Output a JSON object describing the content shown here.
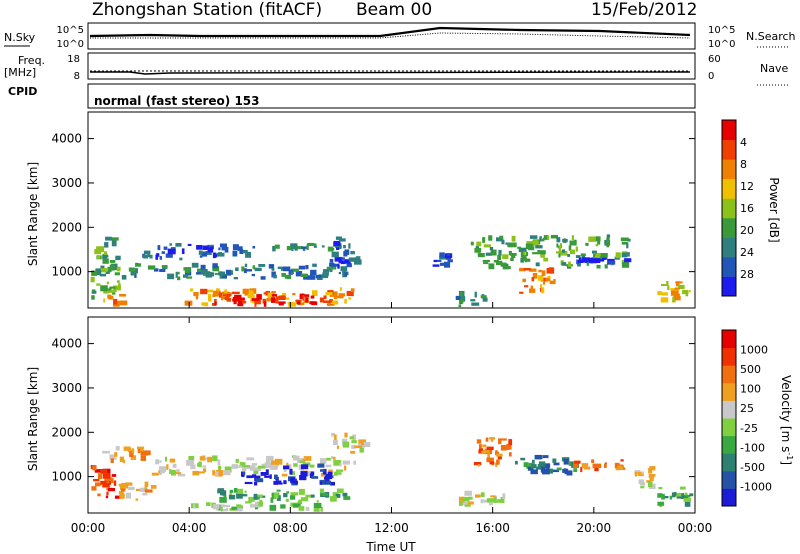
{
  "header": {
    "station": "Zhongshan Station (fitACF)",
    "beam": "Beam 00",
    "date": "15/Feb/2012"
  },
  "summary_panels": {
    "nsky_label": "N.Sky",
    "nsearch_label": "N.Search",
    "count_ticks": [
      "10^5",
      "10^0"
    ],
    "freq_label": "Freq.",
    "freq_unit": "[MHz]",
    "freq_ticks": [
      "18",
      "8"
    ],
    "nave_label": "Nave",
    "nave_ticks": [
      "60",
      "0"
    ],
    "cpid_label": "CPID",
    "cpid_value": "normal (fast stereo) 153"
  },
  "chart_data": [
    {
      "type": "heatmap",
      "name": "power",
      "ylabel": "Slant Range [km]",
      "ylim": [
        180,
        4600
      ],
      "xlim": [
        0,
        24
      ],
      "yticks": [
        "1000",
        "2000",
        "3000",
        "4000"
      ],
      "colorbar": {
        "label": "Power [dB]",
        "ticks": [
          "4",
          "8",
          "12",
          "16",
          "20",
          "24",
          "28"
        ],
        "colors": [
          "#1c1cf0",
          "#2255b8",
          "#2f7f7f",
          "#3a9a3a",
          "#8cc11a",
          "#f0c000",
          "#f08000",
          "#f04000",
          "#e60000"
        ]
      },
      "blobs": [
        {
          "t0": 0.1,
          "t1": 1.3,
          "r0": 300,
          "r1": 1800,
          "level": 3
        },
        {
          "t0": 0.6,
          "t1": 1.6,
          "r0": 200,
          "r1": 500,
          "level": 6
        },
        {
          "t0": 1.2,
          "t1": 10.6,
          "r0": 800,
          "r1": 1200,
          "level": 2
        },
        {
          "t0": 2.0,
          "t1": 6.5,
          "r0": 1250,
          "r1": 1650,
          "level": 1
        },
        {
          "t0": 3.8,
          "t1": 10.6,
          "r0": 200,
          "r1": 650,
          "level": 6
        },
        {
          "t0": 5.0,
          "t1": 9.5,
          "r0": 200,
          "r1": 500,
          "level": 8
        },
        {
          "t0": 6.5,
          "t1": 10.5,
          "r0": 1450,
          "r1": 1650,
          "level": 2
        },
        {
          "t0": 9.5,
          "t1": 11.0,
          "r0": 1050,
          "r1": 1800,
          "level": 1
        },
        {
          "t0": 13.5,
          "t1": 14.5,
          "r0": 1000,
          "r1": 1450,
          "level": 1
        },
        {
          "t0": 14.5,
          "t1": 15.8,
          "r0": 200,
          "r1": 600,
          "level": 2
        },
        {
          "t0": 15.0,
          "t1": 21.5,
          "r0": 1050,
          "r1": 1850,
          "level": 3
        },
        {
          "t0": 17.0,
          "t1": 18.5,
          "r0": 500,
          "r1": 1200,
          "level": 6
        },
        {
          "t0": 19.2,
          "t1": 21.6,
          "r0": 1150,
          "r1": 1350,
          "level": 0
        },
        {
          "t0": 22.5,
          "t1": 24.0,
          "r0": 300,
          "r1": 800,
          "level": 5
        }
      ]
    },
    {
      "type": "heatmap",
      "name": "velocity",
      "ylabel": "Slant Range [km]",
      "ylim": [
        180,
        4600
      ],
      "xlim": [
        0,
        24
      ],
      "yticks": [
        "1000",
        "2000",
        "3000",
        "4000"
      ],
      "colorbar": {
        "label": "Velocity [m s",
        "label_sup": "-1",
        "label_end": "]",
        "ticks": [
          "1000",
          "500",
          "100",
          "25",
          "-25",
          "-100",
          "-500",
          "-1000"
        ],
        "colors": [
          "#1c1cd8",
          "#2452a8",
          "#2e8070",
          "#3aa840",
          "#7fd040",
          "#c8c8c8",
          "#f0a020",
          "#f07010",
          "#f03000",
          "#e60000"
        ]
      },
      "blobs": [
        {
          "t0": 0.1,
          "t1": 1.3,
          "r0": 500,
          "r1": 1300,
          "level": 8
        },
        {
          "t0": 0.5,
          "t1": 2.5,
          "r0": 1300,
          "r1": 1700,
          "level": 6
        },
        {
          "t0": 1.2,
          "t1": 2.8,
          "r0": 450,
          "r1": 900,
          "level": 6
        },
        {
          "t0": 2.5,
          "t1": 10.6,
          "r0": 1000,
          "r1": 1500,
          "level": 5
        },
        {
          "t0": 6.0,
          "t1": 9.8,
          "r0": 800,
          "r1": 1300,
          "level": 0
        },
        {
          "t0": 5.0,
          "t1": 10.6,
          "r0": 400,
          "r1": 750,
          "level": 3
        },
        {
          "t0": 4.0,
          "t1": 9.5,
          "r0": 200,
          "r1": 450,
          "level": 4
        },
        {
          "t0": 9.5,
          "t1": 11.2,
          "r0": 1500,
          "r1": 2000,
          "level": 5
        },
        {
          "t0": 14.5,
          "t1": 16.5,
          "r0": 300,
          "r1": 700,
          "level": 5
        },
        {
          "t0": 15.0,
          "t1": 16.8,
          "r0": 1200,
          "r1": 1900,
          "level": 7
        },
        {
          "t0": 16.8,
          "t1": 19.5,
          "r0": 1000,
          "r1": 1500,
          "level": 2
        },
        {
          "t0": 19.0,
          "t1": 21.5,
          "r0": 1100,
          "r1": 1400,
          "level": 7
        },
        {
          "t0": 21.5,
          "t1": 22.5,
          "r0": 700,
          "r1": 1300,
          "level": 5
        },
        {
          "t0": 22.5,
          "t1": 24.0,
          "r0": 300,
          "r1": 800,
          "level": 3
        }
      ]
    }
  ],
  "x_axis": {
    "title": "Time UT",
    "ticks": [
      "00:00",
      "04:00",
      "08:00",
      "12:00",
      "16:00",
      "20:00",
      "00:00"
    ]
  }
}
